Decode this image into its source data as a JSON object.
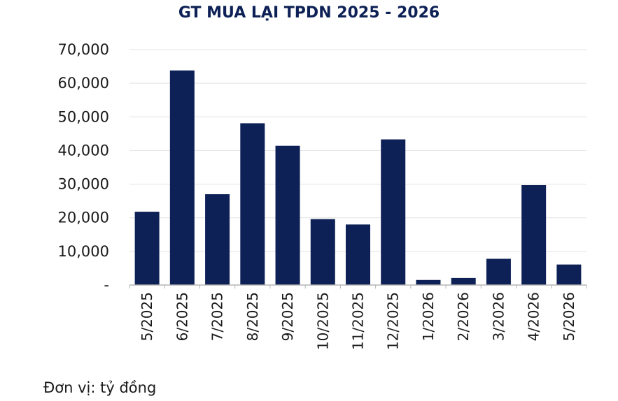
{
  "chart_data": {
    "type": "bar",
    "title": "GT MUA LẠI TPDN 2025 - 2026",
    "categories": [
      "5/2025",
      "6/2025",
      "7/2025",
      "8/2025",
      "9/2025",
      "10/2025",
      "11/2025",
      "12/2025",
      "1/2026",
      "2/2026",
      "3/2026",
      "4/2026",
      "5/2026"
    ],
    "values": [
      21800,
      63800,
      27000,
      48100,
      41400,
      19600,
      18000,
      43300,
      1500,
      2100,
      7800,
      29700,
      6100
    ],
    "ylim": [
      0,
      70000
    ],
    "yticks": [
      0,
      10000,
      20000,
      30000,
      40000,
      50000,
      60000,
      70000
    ],
    "ytick_labels": [
      "-",
      "10,000",
      "20,000",
      "30,000",
      "40,000",
      "50,000",
      "60,000",
      "70,000"
    ],
    "grid": true,
    "bar_color": "#0e2156",
    "grid_color": "#e3e3e3"
  },
  "note": "Đơn vị: tỷ đồng"
}
